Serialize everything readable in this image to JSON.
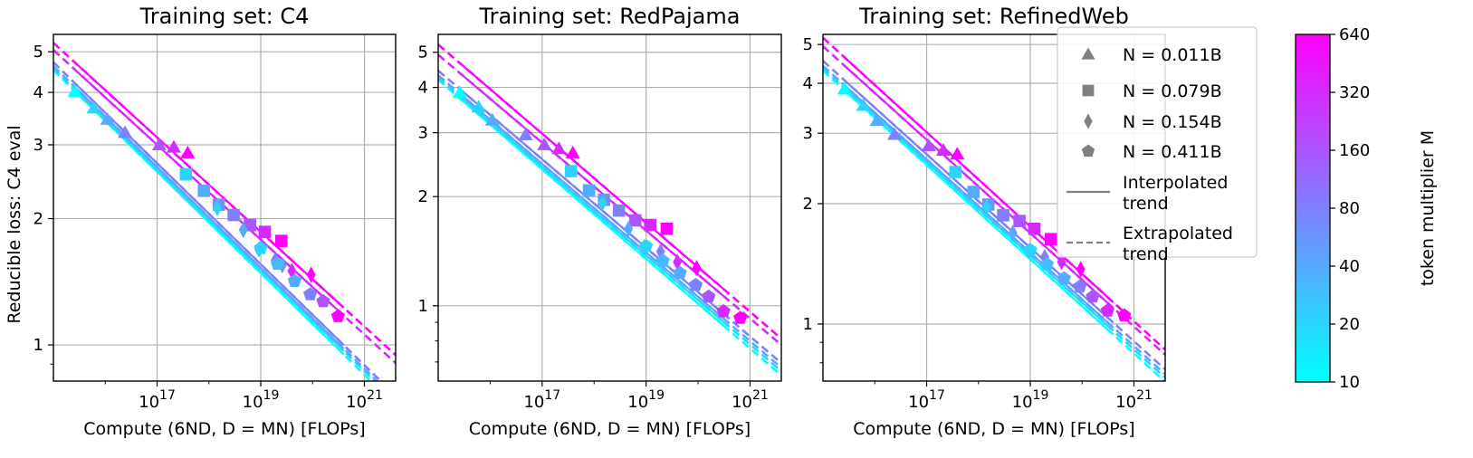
{
  "figure": {
    "y_axis_label": "Reducible loss: C4 eval",
    "x_axis_label": "Compute (6ND, D = MN) [FLOPs]",
    "colorbar_label": "token multiplier M"
  },
  "legend": {
    "entries": [
      {
        "marker": "triangle",
        "label": "N = 0.011B"
      },
      {
        "marker": "square",
        "label": "N = 0.079B"
      },
      {
        "marker": "diamond",
        "label": "N = 0.154B"
      },
      {
        "marker": "pentagon",
        "label": "N = 0.411B"
      },
      {
        "marker": "solid-line",
        "label": "Interpolated trend"
      },
      {
        "marker": "dashed-line",
        "label": "Extrapolated trend"
      }
    ]
  },
  "colorbar": {
    "scale": "log2",
    "range": [
      10,
      640
    ],
    "ticks": [
      "10",
      "20",
      "40",
      "80",
      "160",
      "320",
      "640"
    ],
    "color_low": "#00ffff",
    "color_high": "#ff00ff"
  },
  "chart_data": [
    {
      "type": "scatter",
      "title": "Training set: C4",
      "xscale": "log",
      "yscale": "log",
      "xlim": [
        1000000000000000.0,
        4e+21
      ],
      "ylim": [
        0.82,
        5.5
      ],
      "x_ticks": [
        "10^17",
        "10^19",
        "10^21"
      ],
      "y_ticks": [
        "1",
        "2",
        "3",
        "4",
        "5"
      ],
      "grid": true,
      "trends": [
        {
          "multiplier": 10,
          "x": [
            1000000000000000.0,
            4e+21
          ],
          "y": [
            4.52,
            0.718
          ]
        },
        {
          "multiplier": 20,
          "x": [
            1000000000000000.0,
            4e+21
          ],
          "y": [
            4.56,
            0.733
          ]
        },
        {
          "multiplier": 40,
          "x": [
            1000000000000000.0,
            4e+21
          ],
          "y": [
            4.62,
            0.743
          ]
        },
        {
          "multiplier": 80,
          "x": [
            1000000000000000.0,
            4e+21
          ],
          "y": [
            4.72,
            0.757
          ]
        },
        {
          "multiplier": 320,
          "x": [
            1000000000000000.0,
            4e+21
          ],
          "y": [
            5.05,
            0.905
          ]
        },
        {
          "multiplier": 640,
          "x": [
            1000000000000000.0,
            4e+21
          ],
          "y": [
            5.25,
            0.946
          ]
        }
      ],
      "series": [
        {
          "name": "N = 0.011B",
          "marker": "triangle",
          "points": [
            {
              "x": 2600000000000000.0,
              "y": 4.02,
              "m": 10
            },
            {
              "x": 6000000000000000.0,
              "y": 3.67,
              "m": 20
            },
            {
              "x": 1.1e+16,
              "y": 3.45,
              "m": 40
            },
            {
              "x": 2.4e+16,
              "y": 3.21,
              "m": 80
            },
            {
              "x": 1.1e+17,
              "y": 3.0,
              "m": 160
            },
            {
              "x": 2.1e+17,
              "y": 2.96,
              "m": 320
            },
            {
              "x": 3.9e+17,
              "y": 2.87,
              "m": 640
            }
          ]
        },
        {
          "name": "N = 0.079B",
          "marker": "square",
          "points": [
            {
              "x": 3.6e+17,
              "y": 2.55,
              "m": 20
            },
            {
              "x": 8e+17,
              "y": 2.33,
              "m": 40
            },
            {
              "x": 1.55e+18,
              "y": 2.16,
              "m": 60
            },
            {
              "x": 3e+18,
              "y": 2.04,
              "m": 80
            },
            {
              "x": 6.2e+18,
              "y": 1.93,
              "m": 160
            },
            {
              "x": 1.2e+19,
              "y": 1.86,
              "m": 320
            },
            {
              "x": 2.5e+19,
              "y": 1.77,
              "m": 640
            }
          ]
        },
        {
          "name": "N = 0.154B",
          "marker": "diamond",
          "points": [
            {
              "x": 1.45e+18,
              "y": 2.12,
              "m": 20
            },
            {
              "x": 4.6e+18,
              "y": 1.88,
              "m": 40
            },
            {
              "x": 9.2e+18,
              "y": 1.69,
              "m": 30
            },
            {
              "x": 2.6e+19,
              "y": 1.55,
              "m": 60
            },
            {
              "x": 1.9e+19,
              "y": 1.59,
              "m": 80
            },
            {
              "x": 4e+19,
              "y": 1.5,
              "m": 320
            },
            {
              "x": 9.4e+19,
              "y": 1.47,
              "m": 640
            }
          ]
        },
        {
          "name": "N = 0.411B",
          "marker": "pentagon",
          "points": [
            {
              "x": 1e+19,
              "y": 1.7,
              "m": 20
            },
            {
              "x": 2.1e+19,
              "y": 1.56,
              "m": 30
            },
            {
              "x": 4.5e+19,
              "y": 1.42,
              "m": 40
            },
            {
              "x": 9e+19,
              "y": 1.32,
              "m": 80
            },
            {
              "x": 1.6e+20,
              "y": 1.27,
              "m": 160
            },
            {
              "x": 3.1e+20,
              "y": 1.17,
              "m": 640
            }
          ]
        }
      ]
    },
    {
      "type": "scatter",
      "title": "Training set: RedPajama",
      "xscale": "log",
      "yscale": "log",
      "xlim": [
        1000000000000000.0,
        4e+21
      ],
      "ylim": [
        0.62,
        5.6
      ],
      "x_ticks": [
        "10^17",
        "10^19",
        "10^21"
      ],
      "y_ticks": [
        "1",
        "2",
        "3",
        "4",
        "5"
      ],
      "grid": true,
      "trends": [
        {
          "multiplier": 10,
          "x": [
            1000000000000000.0,
            4e+21
          ],
          "y": [
            4.2,
            0.643
          ]
        },
        {
          "multiplier": 20,
          "x": [
            1000000000000000.0,
            4e+21
          ],
          "y": [
            4.25,
            0.66
          ]
        },
        {
          "multiplier": 40,
          "x": [
            1000000000000000.0,
            4e+21
          ],
          "y": [
            4.32,
            0.675
          ]
        },
        {
          "multiplier": 80,
          "x": [
            1000000000000000.0,
            4e+21
          ],
          "y": [
            4.45,
            0.695
          ]
        },
        {
          "multiplier": 320,
          "x": [
            1000000000000000.0,
            4e+21
          ],
          "y": [
            4.92,
            0.78
          ]
        },
        {
          "multiplier": 640,
          "x": [
            1000000000000000.0,
            4e+21
          ],
          "y": [
            5.25,
            0.812
          ]
        }
      ],
      "series": [
        {
          "name": "N = 0.011B",
          "marker": "triangle",
          "points": [
            {
              "x": 2600000000000000.0,
              "y": 3.87,
              "m": 10
            },
            {
              "x": 6000000000000000.0,
              "y": 3.53,
              "m": 20
            },
            {
              "x": 1.1e+16,
              "y": 3.25,
              "m": 40
            },
            {
              "x": 4.8e+16,
              "y": 2.96,
              "m": 80
            },
            {
              "x": 1.1e+17,
              "y": 2.78,
              "m": 160
            },
            {
              "x": 2.1e+17,
              "y": 2.71,
              "m": 320
            },
            {
              "x": 3.9e+17,
              "y": 2.64,
              "m": 640
            }
          ]
        },
        {
          "name": "N = 0.079B",
          "marker": "square",
          "points": [
            {
              "x": 3.6e+17,
              "y": 2.35,
              "m": 20
            },
            {
              "x": 8e+17,
              "y": 2.08,
              "m": 40
            },
            {
              "x": 1.55e+18,
              "y": 1.96,
              "m": 60
            },
            {
              "x": 3e+18,
              "y": 1.83,
              "m": 80
            },
            {
              "x": 6.2e+18,
              "y": 1.72,
              "m": 160
            },
            {
              "x": 1.2e+19,
              "y": 1.67,
              "m": 320
            },
            {
              "x": 2.5e+19,
              "y": 1.63,
              "m": 640
            }
          ]
        },
        {
          "name": "N = 0.154B",
          "marker": "diamond",
          "points": [
            {
              "x": 1.45e+18,
              "y": 1.92,
              "m": 20
            },
            {
              "x": 4.6e+18,
              "y": 1.63,
              "m": 40
            },
            {
              "x": 9.2e+18,
              "y": 1.45,
              "m": 30
            },
            {
              "x": 1.9e+19,
              "y": 1.41,
              "m": 80
            },
            {
              "x": 4e+19,
              "y": 1.32,
              "m": 320
            },
            {
              "x": 9.4e+19,
              "y": 1.27,
              "m": 640
            }
          ]
        },
        {
          "name": "N = 0.411B",
          "marker": "pentagon",
          "points": [
            {
              "x": 1e+19,
              "y": 1.46,
              "m": 20
            },
            {
              "x": 2.1e+19,
              "y": 1.33,
              "m": 30
            },
            {
              "x": 4.5e+19,
              "y": 1.23,
              "m": 40
            },
            {
              "x": 9e+19,
              "y": 1.14,
              "m": 80
            },
            {
              "x": 1.6e+20,
              "y": 1.06,
              "m": 160
            },
            {
              "x": 3.1e+20,
              "y": 0.965,
              "m": 320
            },
            {
              "x": 6.5e+20,
              "y": 0.925,
              "m": 640
            }
          ]
        }
      ]
    },
    {
      "type": "scatter",
      "title": "Training set: RefinedWeb",
      "xscale": "log",
      "yscale": "log",
      "xlim": [
        1000000000000000.0,
        4e+21
      ],
      "ylim": [
        0.72,
        5.3
      ],
      "x_ticks": [
        "10^17",
        "10^19",
        "10^21"
      ],
      "y_ticks": [
        "1",
        "2",
        "3",
        "4",
        "5"
      ],
      "grid": true,
      "trends": [
        {
          "multiplier": 10,
          "x": [
            1000000000000000.0,
            4e+21
          ],
          "y": [
            4.3,
            0.717
          ]
        },
        {
          "multiplier": 20,
          "x": [
            1000000000000000.0,
            4e+21
          ],
          "y": [
            4.36,
            0.734
          ]
        },
        {
          "multiplier": 40,
          "x": [
            1000000000000000.0,
            4e+21
          ],
          "y": [
            4.42,
            0.749
          ]
        },
        {
          "multiplier": 80,
          "x": [
            1000000000000000.0,
            4e+21
          ],
          "y": [
            4.55,
            0.77
          ]
        },
        {
          "multiplier": 320,
          "x": [
            1000000000000000.0,
            4e+21
          ],
          "y": [
            4.95,
            0.838
          ]
        },
        {
          "multiplier": 640,
          "x": [
            1000000000000000.0,
            4e+21
          ],
          "y": [
            5.2,
            0.863
          ]
        }
      ],
      "series": [
        {
          "name": "N = 0.011B",
          "marker": "triangle",
          "points": [
            {
              "x": 2600000000000000.0,
              "y": 3.87,
              "m": 10
            },
            {
              "x": 6000000000000000.0,
              "y": 3.52,
              "m": 20
            },
            {
              "x": 1.1e+16,
              "y": 3.23,
              "m": 40
            },
            {
              "x": 2.4e+16,
              "y": 2.98,
              "m": 80
            },
            {
              "x": 1.1e+17,
              "y": 2.79,
              "m": 160
            },
            {
              "x": 2.1e+17,
              "y": 2.72,
              "m": 320
            },
            {
              "x": 3.9e+17,
              "y": 2.66,
              "m": 640
            }
          ]
        },
        {
          "name": "N = 0.079B",
          "marker": "square",
          "points": [
            {
              "x": 3.6e+17,
              "y": 2.4,
              "m": 20
            },
            {
              "x": 8e+17,
              "y": 2.14,
              "m": 40
            },
            {
              "x": 1.55e+18,
              "y": 1.99,
              "m": 60
            },
            {
              "x": 3e+18,
              "y": 1.87,
              "m": 80
            },
            {
              "x": 6.2e+18,
              "y": 1.81,
              "m": 160
            },
            {
              "x": 1.2e+19,
              "y": 1.73,
              "m": 320
            },
            {
              "x": 2.5e+19,
              "y": 1.63,
              "m": 640
            }
          ]
        },
        {
          "name": "N = 0.154B",
          "marker": "diamond",
          "points": [
            {
              "x": 1.45e+18,
              "y": 1.96,
              "m": 20
            },
            {
              "x": 4.6e+18,
              "y": 1.69,
              "m": 40
            },
            {
              "x": 9.2e+18,
              "y": 1.52,
              "m": 30
            },
            {
              "x": 1.9e+19,
              "y": 1.47,
              "m": 80
            },
            {
              "x": 4e+19,
              "y": 1.43,
              "m": 320
            },
            {
              "x": 9.4e+19,
              "y": 1.37,
              "m": 640
            }
          ]
        },
        {
          "name": "N = 0.411B",
          "marker": "pentagon",
          "points": [
            {
              "x": 1e+19,
              "y": 1.53,
              "m": 20
            },
            {
              "x": 2.1e+19,
              "y": 1.41,
              "m": 30
            },
            {
              "x": 4.5e+19,
              "y": 1.3,
              "m": 40
            },
            {
              "x": 9e+19,
              "y": 1.24,
              "m": 80
            },
            {
              "x": 1.6e+20,
              "y": 1.17,
              "m": 160
            },
            {
              "x": 3.1e+20,
              "y": 1.08,
              "m": 320
            },
            {
              "x": 6.5e+20,
              "y": 1.05,
              "m": 640
            }
          ]
        }
      ]
    }
  ]
}
